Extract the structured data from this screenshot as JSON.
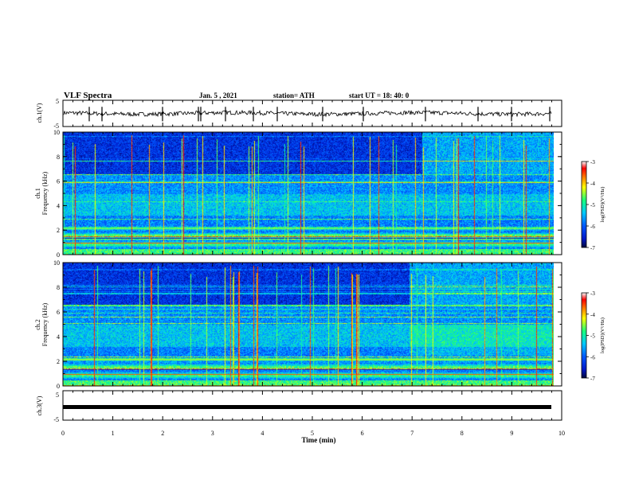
{
  "header": {
    "title": "VLF Spectra",
    "date": "Jan. 5 , 2021",
    "station": "station= ATH",
    "start": "start  UT =   18: 40: 0"
  },
  "chart_data": [
    {
      "type": "line",
      "id": "ch1-waveform",
      "ylabel": "ch.1(V)",
      "ylim": [
        -5,
        5
      ],
      "yticks": [
        "5",
        "-5"
      ],
      "xlim": [
        0,
        10
      ],
      "baseline": 0,
      "color": "#000000"
    },
    {
      "type": "heatmap",
      "id": "ch1-spectrogram",
      "ylabel": "ch.1\nFrequency (kHz)",
      "ylim": [
        0,
        10
      ],
      "yticks": [
        "0",
        "2",
        "4",
        "6",
        "8",
        "10"
      ],
      "xlim": [
        0,
        10
      ],
      "colorbar": {
        "ticks": [
          "-3",
          "-4",
          "-5",
          "-6",
          "-7"
        ],
        "label": "log(PSD)(V²/Hz)",
        "range": [
          -7,
          -3
        ]
      }
    },
    {
      "type": "heatmap",
      "id": "ch2-spectrogram",
      "ylabel": "ch.2\nFrequency (kHz)",
      "ylim": [
        0,
        10
      ],
      "yticks": [
        "0",
        "2",
        "4",
        "6",
        "8",
        "10"
      ],
      "xlim": [
        0,
        10
      ],
      "colorbar": {
        "ticks": [
          "-3",
          "-4",
          "-5",
          "-6",
          "-7"
        ],
        "label": "log(PSD)(V²/Hz)",
        "range": [
          -7,
          -3
        ]
      }
    },
    {
      "type": "line",
      "id": "ch3-waveform",
      "ylabel": "ch.3(V)",
      "ylim": [
        -5,
        5
      ],
      "yticks": [
        "5",
        "-5"
      ],
      "xlim": [
        0,
        10
      ],
      "baseline": 0,
      "color": "#000000"
    }
  ],
  "xaxis": {
    "label": "Time (min)",
    "ticks": [
      "0",
      "1",
      "2",
      "3",
      "4",
      "5",
      "6",
      "7",
      "8",
      "9",
      "10"
    ],
    "range": [
      0,
      10
    ]
  },
  "colors": {
    "colormap": [
      "#000a3c",
      "#0018c8",
      "#0058ff",
      "#00c8ff",
      "#18ff7a",
      "#ffff00",
      "#ff7a00",
      "#ff0000",
      "#ffffff"
    ]
  }
}
